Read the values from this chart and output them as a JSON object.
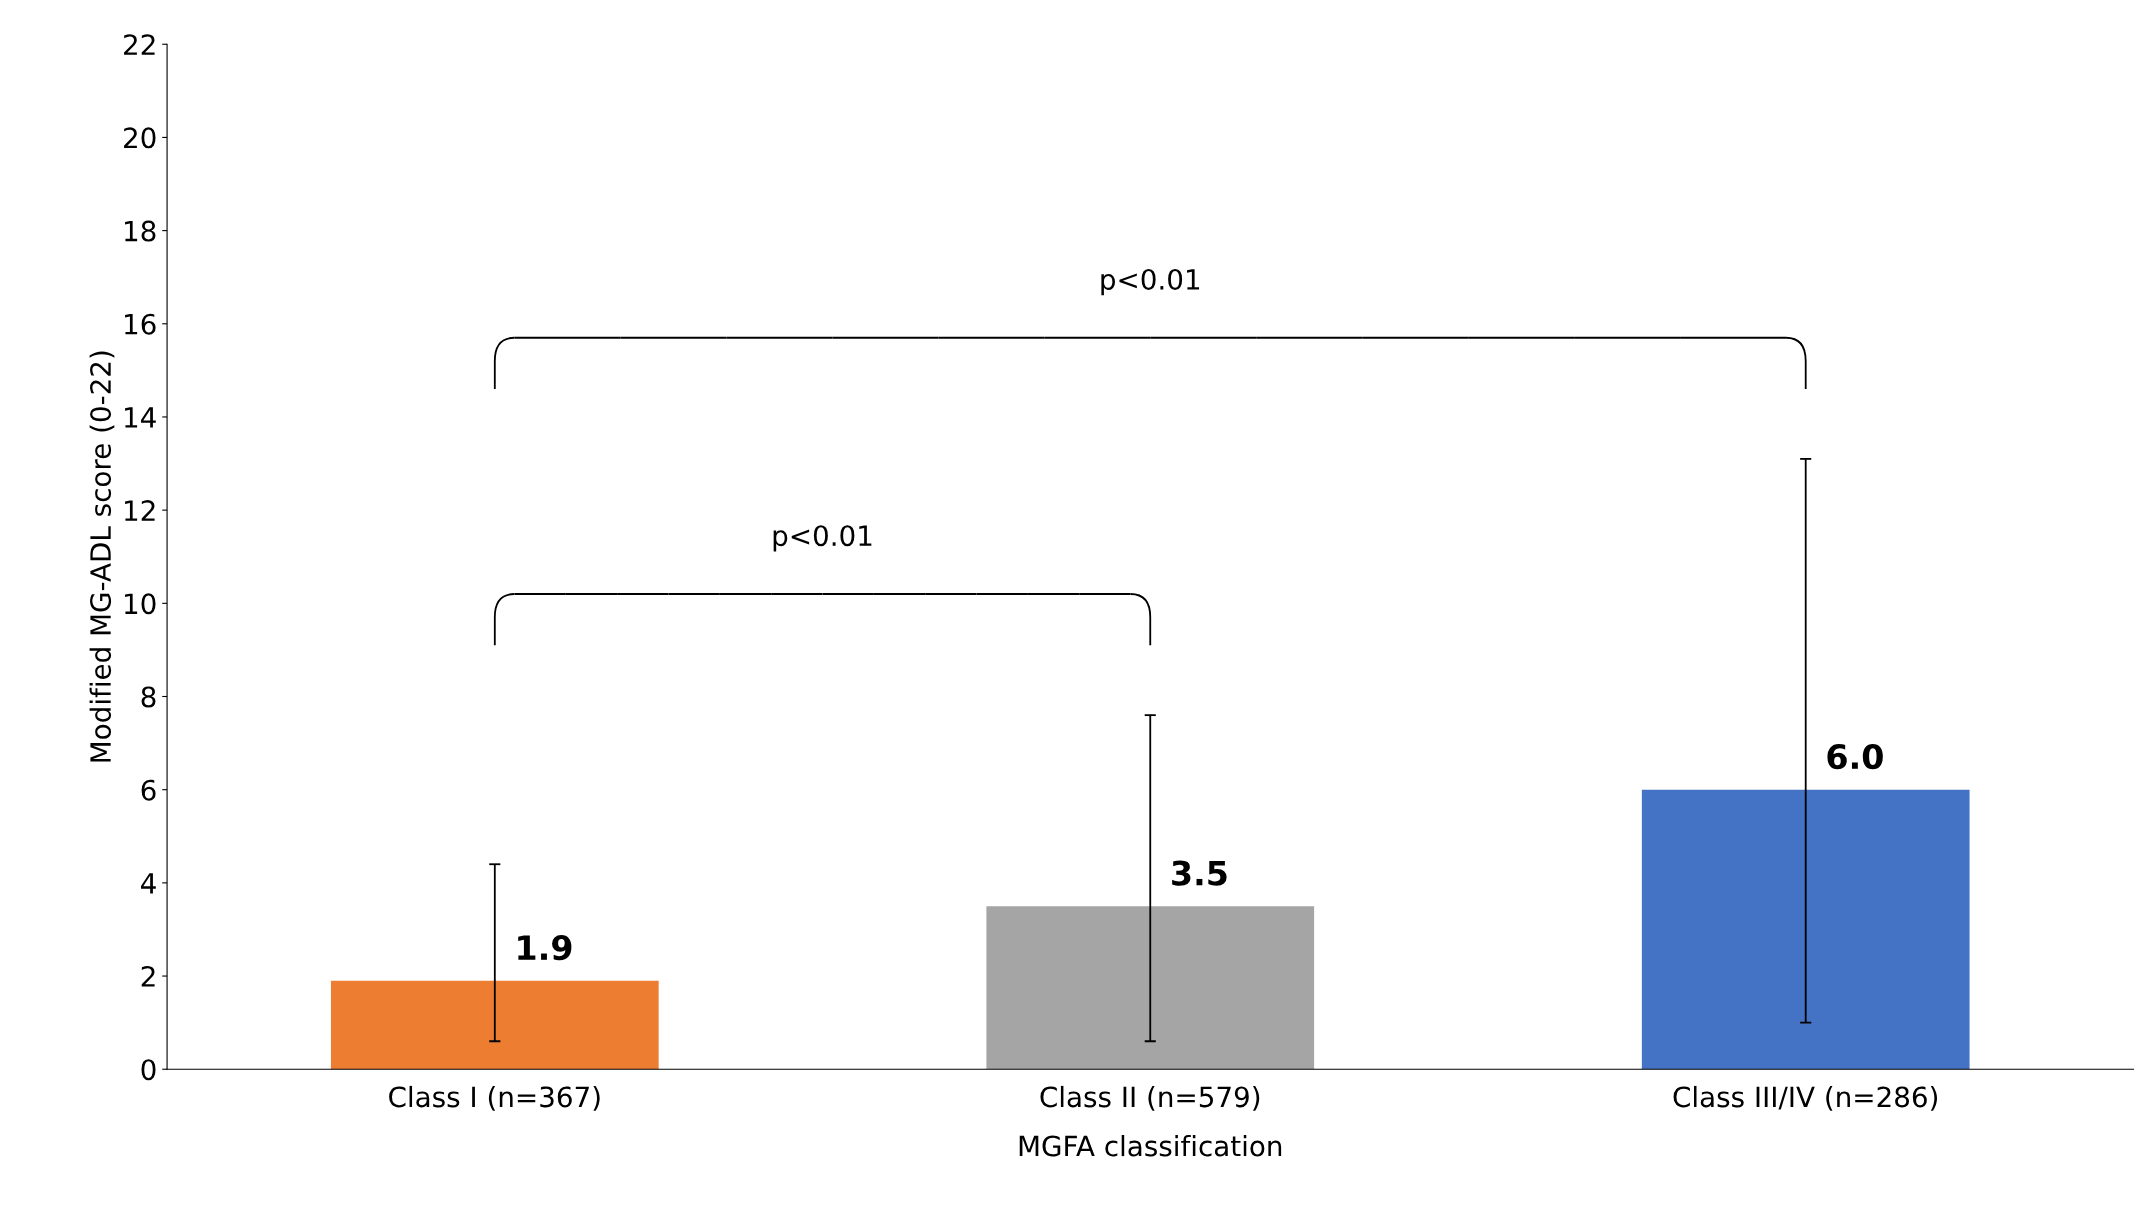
{
  "chart_data": {
    "type": "bar",
    "xlabel": "MGFA classification",
    "ylabel": "Modified MG-ADL score (0-22)",
    "categories": [
      "Class I (n=367)",
      "Class II (n=579)",
      "Class III/IV (n=286)"
    ],
    "values": [
      1.9,
      3.5,
      6.0
    ],
    "colors": [
      "#ed7d31",
      "#a5a5a5",
      "#4472c4"
    ],
    "errors": [
      [
        0.6,
        4.4
      ],
      [
        0.6,
        7.6
      ],
      [
        1.0,
        13.1
      ]
    ],
    "value_labels": [
      "1.9",
      "3.5",
      "6.0"
    ],
    "ylim": [
      0,
      22
    ],
    "yticks": [
      0,
      2,
      4,
      6,
      8,
      10,
      12,
      14,
      16,
      18,
      20,
      22
    ],
    "grid": false,
    "legend": false,
    "annotations": [
      "p<0.01",
      "p<0.01"
    ]
  }
}
